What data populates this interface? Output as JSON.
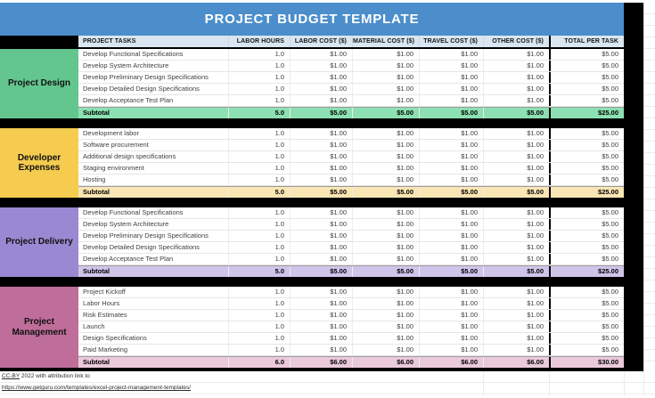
{
  "title": "PROJECT BUDGET TEMPLATE",
  "columns": [
    "PROJECT TASKS",
    "LABOR HOURS",
    "LABOR COST ($)",
    "MATERIAL COST ($)",
    "TRAVEL COST ($)",
    "OTHER COST ($)",
    "TOTAL PER TASK"
  ],
  "sections": [
    {
      "name": "Project Design",
      "color": "#63c68f",
      "subtotal_color": "#8ce0b2",
      "rows": [
        [
          "Develop Functional Specifications",
          "1.0",
          "$1.00",
          "$1.00",
          "$1.00",
          "$1.00",
          "$5.00"
        ],
        [
          "Develop System Architecture",
          "1.0",
          "$1.00",
          "$1.00",
          "$1.00",
          "$1.00",
          "$5.00"
        ],
        [
          "Develop Preliminary Design Specifications",
          "1.0",
          "$1.00",
          "$1.00",
          "$1.00",
          "$1.00",
          "$5.00"
        ],
        [
          "Develop Detailed Design Specifications",
          "1.0",
          "$1.00",
          "$1.00",
          "$1.00",
          "$1.00",
          "$5.00"
        ],
        [
          "Develop Acceptance Test Plan",
          "1.0",
          "$1.00",
          "$1.00",
          "$1.00",
          "$1.00",
          "$5.00"
        ]
      ],
      "subtotal": [
        "Subtotal",
        "5.0",
        "$5.00",
        "$5.00",
        "$5.00",
        "$5.00",
        "$25.00"
      ]
    },
    {
      "name": "Developer Expenses",
      "color": "#f5cc50",
      "subtotal_color": "#fae6b4",
      "rows": [
        [
          "Development labor",
          "1.0",
          "$1.00",
          "$1.00",
          "$1.00",
          "$1.00",
          "$5.00"
        ],
        [
          "Software procurement",
          "1.0",
          "$1.00",
          "$1.00",
          "$1.00",
          "$1.00",
          "$5.00"
        ],
        [
          "Additional design specifications",
          "1.0",
          "$1.00",
          "$1.00",
          "$1.00",
          "$1.00",
          "$5.00"
        ],
        [
          "Staging environment",
          "1.0",
          "$1.00",
          "$1.00",
          "$1.00",
          "$1.00",
          "$5.00"
        ],
        [
          "Hosting",
          "1.0",
          "$1.00",
          "$1.00",
          "$1.00",
          "$1.00",
          "$5.00"
        ]
      ],
      "subtotal": [
        "Subtotal",
        "5.0",
        "$5.00",
        "$5.00",
        "$5.00",
        "$5.00",
        "$25.00"
      ]
    },
    {
      "name": "Project Delivery",
      "color": "#9a89d2",
      "subtotal_color": "#cfc5eb",
      "rows": [
        [
          "Develop Functional Specifications",
          "1.0",
          "$1.00",
          "$1.00",
          "$1.00",
          "$1.00",
          "$5.00"
        ],
        [
          "Develop System Architecture",
          "1.0",
          "$1.00",
          "$1.00",
          "$1.00",
          "$1.00",
          "$5.00"
        ],
        [
          "Develop Preliminary Design Specifications",
          "1.0",
          "$1.00",
          "$1.00",
          "$1.00",
          "$1.00",
          "$5.00"
        ],
        [
          "Develop Detailed Design Specifications",
          "1.0",
          "$1.00",
          "$1.00",
          "$1.00",
          "$1.00",
          "$5.00"
        ],
        [
          "Develop Acceptance Test Plan",
          "1.0",
          "$1.00",
          "$1.00",
          "$1.00",
          "$1.00",
          "$5.00"
        ]
      ],
      "subtotal": [
        "Subtotal",
        "5.0",
        "$5.00",
        "$5.00",
        "$5.00",
        "$5.00",
        "$25.00"
      ]
    },
    {
      "name": "Project Management",
      "color": "#bf6d9a",
      "subtotal_color": "#eac9da",
      "rows": [
        [
          "Project Kickoff",
          "1.0",
          "$1.00",
          "$1.00",
          "$1.00",
          "$1.00",
          "$5.00"
        ],
        [
          "Labor Hours",
          "1.0",
          "$1.00",
          "$1.00",
          "$1.00",
          "$1.00",
          "$5.00"
        ],
        [
          "Risk Estimates",
          "1.0",
          "$1.00",
          "$1.00",
          "$1.00",
          "$1.00",
          "$5.00"
        ],
        [
          "Launch",
          "1.0",
          "$1.00",
          "$1.00",
          "$1.00",
          "$1.00",
          "$5.00"
        ],
        [
          "Design Specifications",
          "1.0",
          "$1.00",
          "$1.00",
          "$1.00",
          "$1.00",
          "$5.00"
        ],
        [
          "Paid Marketing",
          "1.0",
          "$1.00",
          "$1.00",
          "$1.00",
          "$1.00",
          "$5.00"
        ]
      ],
      "subtotal": [
        "Subtotal",
        "6.0",
        "$6.00",
        "$6.00",
        "$6.00",
        "$6.00",
        "$30.00"
      ]
    }
  ],
  "footer": {
    "license_link": "CC-BY",
    "attribution_text": " 2022 with attribution link to",
    "url": "https://www.getguru.com/templates/excel-project-management-templates/"
  },
  "colors": {
    "title_bar": "#4b8ecb",
    "header_row_bg": "#d9e6f2",
    "separator": "#000000"
  }
}
